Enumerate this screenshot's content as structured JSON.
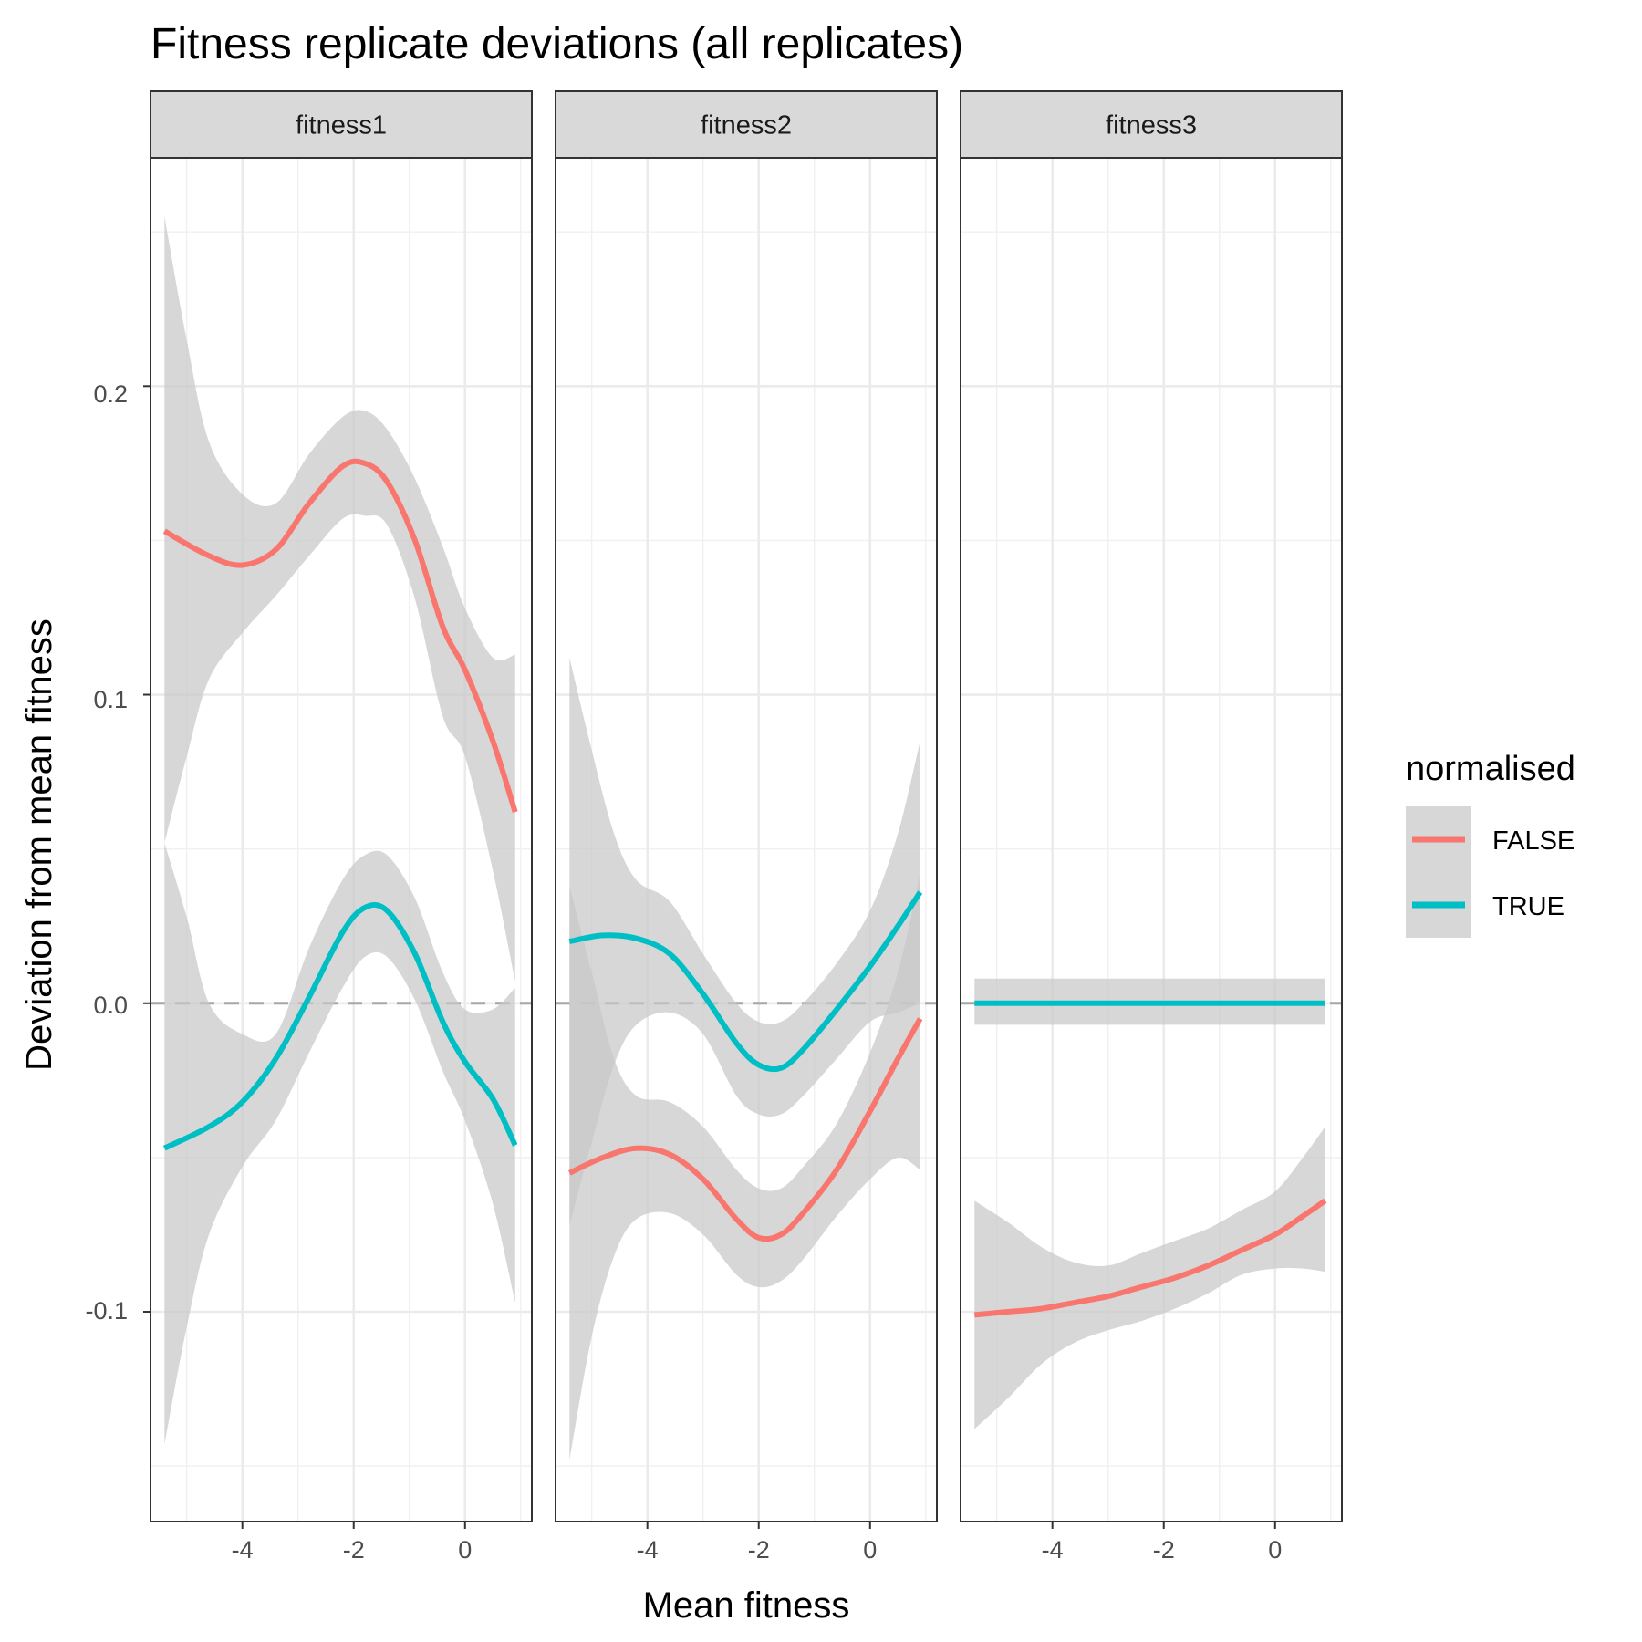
{
  "chart_data": {
    "type": "line",
    "title": "Fitness replicate deviations (all replicates)",
    "xlabel": "Mean fitness",
    "ylabel": "Deviation from mean fitness",
    "xlim": [
      -5.65,
      1.2
    ],
    "ylim": [
      -0.168,
      0.274
    ],
    "x_ticks": [
      -4,
      -2,
      0
    ],
    "x_tick_labels": [
      "-4",
      "-2",
      "0"
    ],
    "y_ticks": [
      -0.1,
      0.0,
      0.1,
      0.2
    ],
    "y_tick_labels": [
      "-0.1",
      "0.0",
      "0.1",
      "0.2"
    ],
    "reference_line": {
      "y": 0,
      "style": "dashed",
      "color": "#a6a6a6"
    },
    "grid": true,
    "band_color": "#c8c8c8",
    "legend": {
      "title": "normalised",
      "position": "right",
      "entries": [
        {
          "label": "FALSE",
          "color": "#F8766D"
        },
        {
          "label": "TRUE",
          "color": "#00BFC4"
        }
      ]
    },
    "panels": [
      {
        "label": "fitness1",
        "series": [
          {
            "name": "FALSE",
            "color": "#F8766D",
            "points": [
              [
                -5.4,
                0.153
              ],
              [
                -4.6,
                0.145
              ],
              [
                -4.0,
                0.142
              ],
              [
                -3.4,
                0.147
              ],
              [
                -2.8,
                0.162
              ],
              [
                -2.2,
                0.174
              ],
              [
                -1.8,
                0.175
              ],
              [
                -1.4,
                0.169
              ],
              [
                -0.9,
                0.15
              ],
              [
                -0.4,
                0.122
              ],
              [
                0.0,
                0.108
              ],
              [
                0.5,
                0.085
              ],
              [
                0.9,
                0.062
              ]
            ],
            "band": [
              [
                -5.4,
                0.052,
                0.255
              ],
              [
                -5.0,
                0.08,
                0.215
              ],
              [
                -4.6,
                0.105,
                0.182
              ],
              [
                -4.0,
                0.12,
                0.165
              ],
              [
                -3.4,
                0.132,
                0.162
              ],
              [
                -2.8,
                0.145,
                0.178
              ],
              [
                -2.2,
                0.157,
                0.19
              ],
              [
                -1.8,
                0.158,
                0.192
              ],
              [
                -1.4,
                0.155,
                0.186
              ],
              [
                -0.9,
                0.131,
                0.17
              ],
              [
                -0.4,
                0.093,
                0.148
              ],
              [
                0.0,
                0.08,
                0.128
              ],
              [
                0.5,
                0.043,
                0.112
              ],
              [
                0.9,
                0.007,
                0.113
              ]
            ]
          },
          {
            "name": "TRUE",
            "color": "#00BFC4",
            "points": [
              [
                -5.4,
                -0.047
              ],
              [
                -4.6,
                -0.04
              ],
              [
                -4.0,
                -0.032
              ],
              [
                -3.4,
                -0.018
              ],
              [
                -2.8,
                0.002
              ],
              [
                -2.2,
                0.023
              ],
              [
                -1.8,
                0.031
              ],
              [
                -1.4,
                0.03
              ],
              [
                -0.9,
                0.016
              ],
              [
                -0.4,
                -0.006
              ],
              [
                0.0,
                -0.019
              ],
              [
                0.5,
                -0.031
              ],
              [
                0.9,
                -0.046
              ]
            ],
            "band": [
              [
                -5.4,
                -0.143,
                0.052
              ],
              [
                -5.0,
                -0.105,
                0.028
              ],
              [
                -4.6,
                -0.075,
                0.0
              ],
              [
                -4.0,
                -0.053,
                -0.01
              ],
              [
                -3.4,
                -0.038,
                -0.01
              ],
              [
                -2.8,
                -0.016,
                0.018
              ],
              [
                -2.2,
                0.005,
                0.04
              ],
              [
                -1.8,
                0.015,
                0.048
              ],
              [
                -1.4,
                0.015,
                0.048
              ],
              [
                -0.9,
                0.001,
                0.034
              ],
              [
                -0.4,
                -0.022,
                0.01
              ],
              [
                0.0,
                -0.038,
                -0.002
              ],
              [
                0.5,
                -0.065,
                -0.002
              ],
              [
                0.9,
                -0.097,
                0.005
              ]
            ]
          }
        ]
      },
      {
        "label": "fitness2",
        "series": [
          {
            "name": "FALSE",
            "color": "#F8766D",
            "points": [
              [
                -5.4,
                -0.055
              ],
              [
                -4.8,
                -0.05
              ],
              [
                -4.2,
                -0.047
              ],
              [
                -3.6,
                -0.049
              ],
              [
                -3.0,
                -0.057
              ],
              [
                -2.4,
                -0.07
              ],
              [
                -2.0,
                -0.076
              ],
              [
                -1.6,
                -0.075
              ],
              [
                -1.2,
                -0.068
              ],
              [
                -0.6,
                -0.054
              ],
              [
                0.0,
                -0.035
              ],
              [
                0.5,
                -0.018
              ],
              [
                0.9,
                -0.005
              ]
            ],
            "band": [
              [
                -5.4,
                -0.148,
                0.038
              ],
              [
                -5.0,
                -0.108,
                0.01
              ],
              [
                -4.6,
                -0.082,
                -0.018
              ],
              [
                -4.2,
                -0.07,
                -0.03
              ],
              [
                -3.6,
                -0.068,
                -0.032
              ],
              [
                -3.0,
                -0.075,
                -0.04
              ],
              [
                -2.4,
                -0.088,
                -0.054
              ],
              [
                -2.0,
                -0.092,
                -0.06
              ],
              [
                -1.6,
                -0.09,
                -0.06
              ],
              [
                -1.2,
                -0.083,
                -0.053
              ],
              [
                -0.6,
                -0.069,
                -0.039
              ],
              [
                0.0,
                -0.057,
                -0.016
              ],
              [
                0.5,
                -0.05,
                0.01
              ],
              [
                0.9,
                -0.054,
                0.042
              ]
            ]
          },
          {
            "name": "TRUE",
            "color": "#00BFC4",
            "points": [
              [
                -5.4,
                0.02
              ],
              [
                -4.8,
                0.022
              ],
              [
                -4.2,
                0.021
              ],
              [
                -3.6,
                0.016
              ],
              [
                -3.0,
                0.003
              ],
              [
                -2.4,
                -0.013
              ],
              [
                -2.0,
                -0.02
              ],
              [
                -1.6,
                -0.021
              ],
              [
                -1.2,
                -0.015
              ],
              [
                -0.6,
                -0.002
              ],
              [
                0.0,
                0.012
              ],
              [
                0.5,
                0.025
              ],
              [
                0.9,
                0.036
              ]
            ],
            "band": [
              [
                -5.4,
                -0.072,
                0.112
              ],
              [
                -5.0,
                -0.045,
                0.082
              ],
              [
                -4.6,
                -0.02,
                0.055
              ],
              [
                -4.2,
                -0.007,
                0.04
              ],
              [
                -3.6,
                -0.003,
                0.033
              ],
              [
                -3.0,
                -0.01,
                0.016
              ],
              [
                -2.4,
                -0.03,
                0.0
              ],
              [
                -2.0,
                -0.036,
                -0.006
              ],
              [
                -1.6,
                -0.036,
                -0.006
              ],
              [
                -1.2,
                -0.03,
                0.0
              ],
              [
                -0.6,
                -0.018,
                0.013
              ],
              [
                0.0,
                -0.006,
                0.03
              ],
              [
                0.5,
                -0.003,
                0.055
              ],
              [
                0.9,
                0.0,
                0.085
              ]
            ]
          }
        ]
      },
      {
        "label": "fitness3",
        "series": [
          {
            "name": "FALSE",
            "color": "#F8766D",
            "points": [
              [
                -5.4,
                -0.101
              ],
              [
                -4.8,
                -0.1
              ],
              [
                -4.2,
                -0.099
              ],
              [
                -3.6,
                -0.097
              ],
              [
                -3.0,
                -0.095
              ],
              [
                -2.4,
                -0.092
              ],
              [
                -1.8,
                -0.089
              ],
              [
                -1.2,
                -0.085
              ],
              [
                -0.6,
                -0.08
              ],
              [
                0.0,
                -0.075
              ],
              [
                0.5,
                -0.069
              ],
              [
                0.9,
                -0.064
              ]
            ],
            "band": [
              [
                -5.4,
                -0.138,
                -0.064
              ],
              [
                -4.8,
                -0.128,
                -0.071
              ],
              [
                -4.2,
                -0.117,
                -0.079
              ],
              [
                -3.6,
                -0.11,
                -0.084
              ],
              [
                -3.0,
                -0.106,
                -0.085
              ],
              [
                -2.4,
                -0.103,
                -0.081
              ],
              [
                -1.8,
                -0.099,
                -0.077
              ],
              [
                -1.2,
                -0.094,
                -0.073
              ],
              [
                -0.6,
                -0.088,
                -0.067
              ],
              [
                0.0,
                -0.086,
                -0.061
              ],
              [
                0.5,
                -0.086,
                -0.05
              ],
              [
                0.9,
                -0.087,
                -0.04
              ]
            ]
          },
          {
            "name": "TRUE",
            "color": "#00BFC4",
            "points": [
              [
                -5.4,
                0.0
              ],
              [
                0.9,
                0.0
              ]
            ],
            "band": [
              [
                -5.4,
                -0.007,
                0.008
              ],
              [
                0.9,
                -0.007,
                0.008
              ]
            ]
          }
        ]
      }
    ]
  }
}
